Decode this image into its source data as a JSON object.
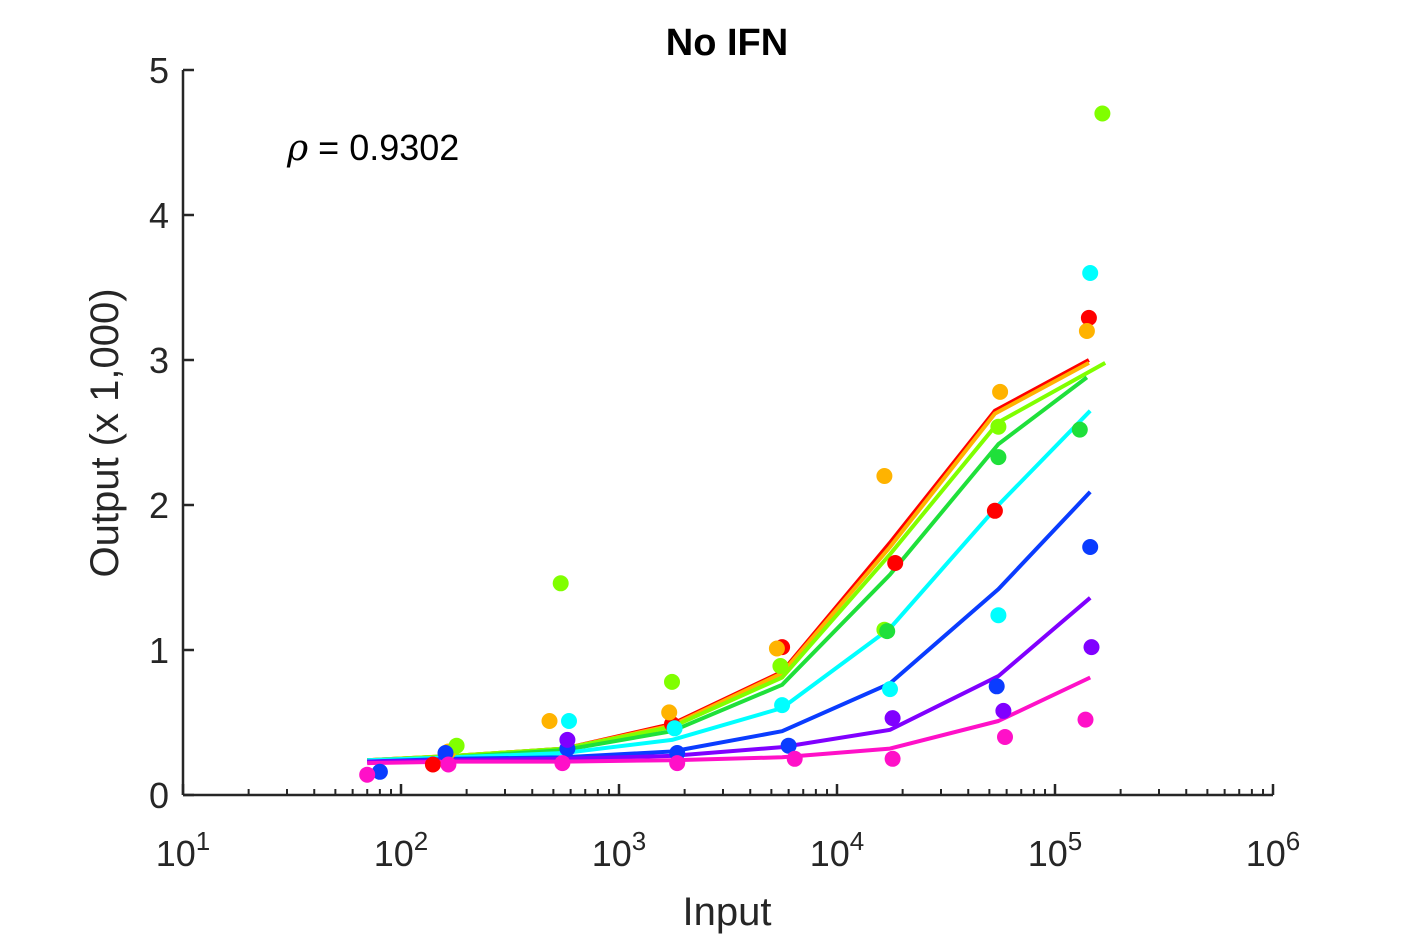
{
  "chart_data": {
    "type": "scatter",
    "title": "No IFN",
    "xlabel": "Input",
    "ylabel": "Output (x 1,000)",
    "xscale": "log",
    "xlim": [
      10,
      1000000
    ],
    "ylim": [
      0,
      5
    ],
    "x_ticks": [
      {
        "base": "10",
        "exp": "1"
      },
      {
        "base": "10",
        "exp": "2"
      },
      {
        "base": "10",
        "exp": "3"
      },
      {
        "base": "10",
        "exp": "4"
      },
      {
        "base": "10",
        "exp": "5"
      },
      {
        "base": "10",
        "exp": "6"
      }
    ],
    "y_ticks": [
      "0",
      "1",
      "2",
      "3",
      "4",
      "5"
    ],
    "grid": false,
    "annotation": {
      "symbol": "ρ",
      "text": " = 0.9302"
    },
    "series": [
      {
        "color": "#ff0000",
        "points": [
          [
            140,
            0.21
          ],
          [
            1750,
            0.49
          ],
          [
            5600,
            1.02
          ],
          [
            18500,
            1.6
          ],
          [
            53000,
            1.96
          ],
          [
            143000,
            3.29
          ]
        ],
        "fit": [
          [
            70,
            0.24
          ],
          [
            175,
            0.27
          ],
          [
            560,
            0.32
          ],
          [
            1750,
            0.49
          ],
          [
            5600,
            0.85
          ],
          [
            17500,
            1.74
          ],
          [
            53000,
            2.65
          ],
          [
            143000,
            3.0
          ]
        ]
      },
      {
        "color": "#ffb300",
        "points": [
          [
            165,
            0.3
          ],
          [
            480,
            0.51
          ],
          [
            1700,
            0.57
          ],
          [
            5300,
            1.01
          ],
          [
            16500,
            2.2
          ],
          [
            56000,
            2.78
          ],
          [
            140000,
            3.2
          ]
        ],
        "fit": [
          [
            70,
            0.24
          ],
          [
            175,
            0.27
          ],
          [
            560,
            0.32
          ],
          [
            1750,
            0.48
          ],
          [
            5600,
            0.84
          ],
          [
            17500,
            1.71
          ],
          [
            53000,
            2.63
          ],
          [
            143000,
            2.98
          ]
        ]
      },
      {
        "color": "#80ff00",
        "points": [
          [
            180,
            0.34
          ],
          [
            540,
            1.46
          ],
          [
            1750,
            0.78
          ],
          [
            5500,
            0.89
          ],
          [
            16500,
            1.14
          ],
          [
            55000,
            2.54
          ],
          [
            165000,
            4.7
          ]
        ],
        "fit": [
          [
            70,
            0.24
          ],
          [
            175,
            0.27
          ],
          [
            560,
            0.32
          ],
          [
            1750,
            0.47
          ],
          [
            5600,
            0.81
          ],
          [
            17500,
            1.66
          ],
          [
            55000,
            2.57
          ],
          [
            170000,
            2.98
          ]
        ]
      },
      {
        "color": "#1fe03a",
        "points": [
          [
            17000,
            1.13
          ],
          [
            55000,
            2.33
          ],
          [
            130000,
            2.52
          ]
        ],
        "fit": [
          [
            70,
            0.24
          ],
          [
            175,
            0.26
          ],
          [
            560,
            0.31
          ],
          [
            1750,
            0.44
          ],
          [
            5600,
            0.76
          ],
          [
            17500,
            1.52
          ],
          [
            55000,
            2.42
          ],
          [
            140000,
            2.88
          ]
        ]
      },
      {
        "color": "#00ffff",
        "points": [
          [
            590,
            0.51
          ],
          [
            1800,
            0.46
          ],
          [
            5600,
            0.62
          ],
          [
            17500,
            0.73
          ],
          [
            55000,
            1.24
          ],
          [
            145000,
            3.6
          ]
        ],
        "fit": [
          [
            70,
            0.24
          ],
          [
            175,
            0.26
          ],
          [
            560,
            0.29
          ],
          [
            1750,
            0.38
          ],
          [
            5600,
            0.6
          ],
          [
            17500,
            1.15
          ],
          [
            55000,
            2.0
          ],
          [
            145000,
            2.65
          ]
        ]
      },
      {
        "color": "#0a3cff",
        "points": [
          [
            80,
            0.16
          ],
          [
            160,
            0.29
          ],
          [
            580,
            0.32
          ],
          [
            1850,
            0.29
          ],
          [
            6000,
            0.34
          ],
          [
            54000,
            0.75
          ],
          [
            145000,
            1.71
          ]
        ],
        "fit": [
          [
            70,
            0.23
          ],
          [
            175,
            0.25
          ],
          [
            560,
            0.26
          ],
          [
            1750,
            0.3
          ],
          [
            5600,
            0.44
          ],
          [
            17500,
            0.77
          ],
          [
            55000,
            1.42
          ],
          [
            145000,
            2.09
          ]
        ]
      },
      {
        "color": "#8000ff",
        "points": [
          [
            580,
            0.38
          ],
          [
            18000,
            0.53
          ],
          [
            58000,
            0.58
          ],
          [
            147000,
            1.02
          ]
        ],
        "fit": [
          [
            70,
            0.23
          ],
          [
            175,
            0.24
          ],
          [
            560,
            0.25
          ],
          [
            1750,
            0.27
          ],
          [
            5600,
            0.33
          ],
          [
            17500,
            0.45
          ],
          [
            55000,
            0.82
          ],
          [
            145000,
            1.36
          ]
        ]
      },
      {
        "color": "#ff10c8",
        "points": [
          [
            70,
            0.14
          ],
          [
            165,
            0.21
          ],
          [
            550,
            0.22
          ],
          [
            1850,
            0.22
          ],
          [
            6400,
            0.25
          ],
          [
            18000,
            0.25
          ],
          [
            59000,
            0.4
          ],
          [
            138000,
            0.52
          ]
        ],
        "fit": [
          [
            70,
            0.22
          ],
          [
            175,
            0.23
          ],
          [
            560,
            0.23
          ],
          [
            1750,
            0.24
          ],
          [
            5600,
            0.26
          ],
          [
            17500,
            0.32
          ],
          [
            55000,
            0.51
          ],
          [
            145000,
            0.81
          ]
        ]
      }
    ]
  }
}
